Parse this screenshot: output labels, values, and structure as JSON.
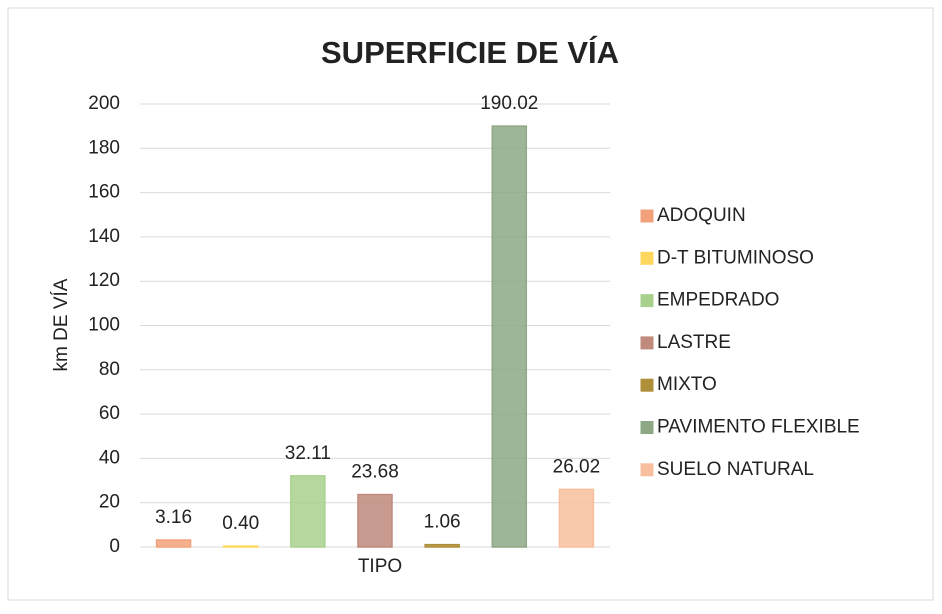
{
  "chart_data": {
    "type": "bar",
    "title": "SUPERFICIE DE VÍA",
    "y_label": "km DE VÍA",
    "x_label": "TIPO",
    "ylim": [
      0,
      200
    ],
    "yticks": [
      0,
      20,
      40,
      60,
      80,
      100,
      120,
      140,
      160,
      180,
      200
    ],
    "grid": true,
    "legend": "right",
    "series": [
      {
        "name": "ADOQUIN",
        "color": "#f2a27a",
        "values": [
          3.16
        ],
        "value_labels": [
          "3.16"
        ]
      },
      {
        "name": "D-T BITUMINOSO",
        "color": "#ffd75e",
        "values": [
          0.4
        ],
        "value_labels": [
          "0.40"
        ]
      },
      {
        "name": "EMPEDRADO",
        "color": "#a9d18e",
        "values": [
          32.11
        ],
        "value_labels": [
          "32.11"
        ]
      },
      {
        "name": "LASTRE",
        "color": "#c08a7c",
        "values": [
          23.68
        ],
        "value_labels": [
          "23.68"
        ]
      },
      {
        "name": "MIXTO",
        "color": "#b08f3a",
        "values": [
          1.06
        ],
        "value_labels": [
          "1.06"
        ]
      },
      {
        "name": "PAVIMENTO FLEXIBLE",
        "color": "#8ea886",
        "values": [
          190.02
        ],
        "value_labels": [
          "190.02"
        ]
      },
      {
        "name": "SUELO NATURAL",
        "color": "#f8bf9e",
        "values": [
          26.02
        ],
        "value_labels": [
          "26.02"
        ]
      }
    ]
  }
}
